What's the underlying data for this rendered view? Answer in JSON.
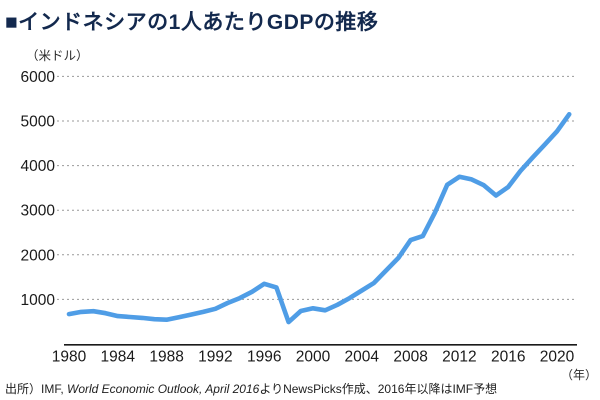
{
  "header": {
    "title": "■インドネシアの1人あたりGDPの推移"
  },
  "chart": {
    "unit_label": "（米ドル）",
    "year_label": "（年）",
    "accent_color": "#4f9de6",
    "title_color": "#13294e",
    "gridline_color": "#999999",
    "axis_color": "#1a1a1a"
  },
  "source": {
    "prefix": "出所）IMF, ",
    "italic": "World Economic Outlook, April 2016",
    "suffix": "よりNewsPicks作成、2016年以降はIMF予想"
  },
  "chart_data": {
    "type": "line",
    "title": "インドネシアの1人あたりGDPの推移",
    "series_name": "1人あたりGDP",
    "xlabel": "年",
    "ylabel": "米ドル",
    "x": [
      1980,
      1981,
      1982,
      1983,
      1984,
      1985,
      1986,
      1987,
      1988,
      1989,
      1990,
      1991,
      1992,
      1993,
      1994,
      1995,
      1996,
      1997,
      1998,
      1999,
      2000,
      2001,
      2002,
      2003,
      2004,
      2005,
      2006,
      2007,
      2008,
      2009,
      2010,
      2011,
      2012,
      2013,
      2014,
      2015,
      2016,
      2017,
      2018,
      2019,
      2020,
      2021
    ],
    "values": [
      670,
      720,
      735,
      690,
      625,
      605,
      585,
      555,
      545,
      600,
      660,
      720,
      790,
      920,
      1030,
      1170,
      1350,
      1270,
      490,
      740,
      800,
      755,
      880,
      1030,
      1200,
      1370,
      1650,
      1930,
      2330,
      2420,
      2950,
      3570,
      3750,
      3690,
      3560,
      3330,
      3520,
      3880,
      4180,
      4470,
      4770,
      5150
    ],
    "ylim": [
      0,
      6000
    ],
    "yticks": [
      1000,
      2000,
      3000,
      4000,
      5000,
      6000
    ],
    "xticks": [
      1980,
      1984,
      1988,
      1992,
      1996,
      2000,
      2004,
      2008,
      2012,
      2016,
      2020
    ],
    "grid": "horizontal-dotted",
    "legend": "none",
    "line_color": "#4f9de6",
    "note": "2016年以降はIMF予想"
  }
}
